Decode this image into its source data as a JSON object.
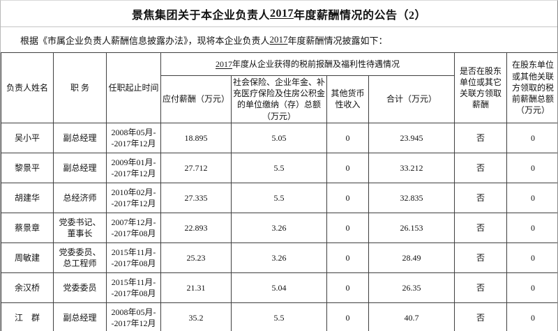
{
  "page": {
    "title": {
      "pre": "景焦集团关于本企业负责人",
      "year": "2017",
      "post": "年度薪酬情况的公告（2）"
    },
    "intro": {
      "pre": "根据《市属企业负责人薪酬信息披露办法》，现将本企业负责人",
      "year": "2017",
      "post": "年度薪酬情况披露如下："
    }
  },
  "table": {
    "span_header": {
      "pre": "",
      "year": "2017",
      "post": "年度从企业获得的税前报酬及福利性待遇情况"
    },
    "headers": {
      "name": "负责人姓名",
      "position": "职 务",
      "term": "任职起止时间",
      "payable": "应付薪酬（万元）",
      "insurance": "社会保险、企业年金、补充医疗保险及住房公积金的单位缴纳（存）总额（万元）",
      "other": "其他货币性收入",
      "total": "合计（万元）",
      "shareholder_paid": "是否在股东单位或其它关联方领取薪酬",
      "shareholder_amount": "在股东单位或其他关联方领取的税前薪酬总额（万元）"
    },
    "rows": [
      {
        "name": "吴小平",
        "position": "副总经理",
        "term": "2008年05月-\n-2017年12月",
        "payable": "18.895",
        "insurance": "5.05",
        "other": "0",
        "total": "23.945",
        "shareholder_paid": "否",
        "shareholder_amount": "0"
      },
      {
        "name": "黎景平",
        "position": "副总经理",
        "term": "2009年01月-\n-2017年12月",
        "payable": "27.712",
        "insurance": "5.5",
        "other": "0",
        "total": "33.212",
        "shareholder_paid": "否",
        "shareholder_amount": "0"
      },
      {
        "name": "胡建华",
        "position": "总经济师",
        "term": "2010年02月-\n-2017年12月",
        "payable": "27.335",
        "insurance": "5.5",
        "other": "0",
        "total": "32.835",
        "shareholder_paid": "否",
        "shareholder_amount": "0"
      },
      {
        "name": "蔡景章",
        "position": "党委书记、董事长",
        "term": "2007年12月-\n-2017年08月",
        "payable": "22.893",
        "insurance": "3.26",
        "other": "0",
        "total": "26.153",
        "shareholder_paid": "否",
        "shareholder_amount": "0"
      },
      {
        "name": "周敏建",
        "position": "党委委员、总工程师",
        "term": "2015年11月-\n-2017年08月",
        "payable": "25.23",
        "insurance": "3.26",
        "other": "0",
        "total": "28.49",
        "shareholder_paid": "否",
        "shareholder_amount": "0"
      },
      {
        "name": "余汉桥",
        "position": "党委委员",
        "term": "2015年11月-\n-2017年08月",
        "payable": "21.31",
        "insurance": "5.04",
        "other": "0",
        "total": "26.35",
        "shareholder_paid": "否",
        "shareholder_amount": "0"
      },
      {
        "name": "江　群",
        "position": "副总经理",
        "term": "2008年05月-\n-2017年12月",
        "payable": "35.2",
        "insurance": "5.5",
        "other": "0",
        "total": "40.7",
        "shareholder_paid": "否",
        "shareholder_amount": "0"
      }
    ]
  }
}
